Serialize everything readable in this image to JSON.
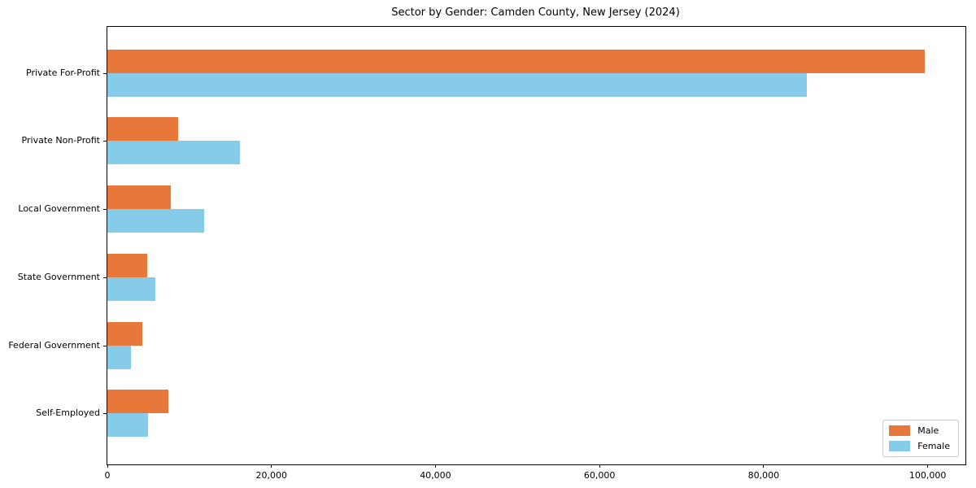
{
  "figure": {
    "background": "#ffffff",
    "spine_color": "#000000"
  },
  "chart_data": {
    "type": "bar",
    "orientation": "horizontal",
    "title": "Sector by Gender: Camden County, New Jersey (2024)",
    "xlabel": "",
    "ylabel": "",
    "categories": [
      "Private For-Profit",
      "Private Non-Profit",
      "Local Government",
      "State Government",
      "Federal Government",
      "Self-Employed"
    ],
    "series": [
      {
        "name": "Male",
        "color": "#e8773a",
        "values": [
          99600,
          8600,
          7700,
          4900,
          4300,
          7400
        ]
      },
      {
        "name": "Female",
        "color": "#86cce8",
        "values": [
          85300,
          16200,
          11800,
          5800,
          2900,
          5000
        ]
      }
    ],
    "xlim": [
      0,
      104600
    ],
    "x_ticks": [
      {
        "value": 0,
        "label": "0"
      },
      {
        "value": 20000,
        "label": "20,000"
      },
      {
        "value": 40000,
        "label": "40,000"
      },
      {
        "value": 60000,
        "label": "60,000"
      },
      {
        "value": 80000,
        "label": "80,000"
      },
      {
        "value": 100000,
        "label": "100,000"
      }
    ],
    "grid": false,
    "legend": {
      "position": "lower-right",
      "entries": [
        "Male",
        "Female"
      ]
    }
  }
}
